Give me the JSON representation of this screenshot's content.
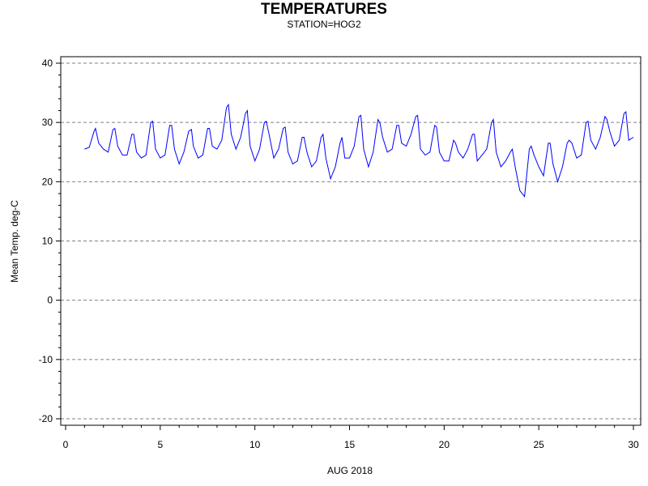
{
  "chart_data": {
    "type": "line",
    "title": "TEMPERATURES",
    "subtitle": "STATION=HOG2",
    "xlabel": "AUG 2018",
    "ylabel": "Mean Temp. deg-C",
    "xlim": [
      0,
      30
    ],
    "ylim": [
      -20,
      40
    ],
    "x_ticks": [
      0,
      5,
      10,
      15,
      20,
      25,
      30
    ],
    "y_ticks": [
      -20,
      -10,
      0,
      10,
      20,
      30,
      40
    ],
    "grid": "horizontal-dashed",
    "line_color": "#0000ff",
    "series": [
      {
        "x": [
          1.0,
          1.25,
          1.5,
          1.58,
          1.75,
          2.0,
          2.25,
          2.5,
          2.6,
          2.75,
          3.0,
          3.25,
          3.5,
          3.6,
          3.75,
          4.0,
          4.25,
          4.5,
          4.6,
          4.75,
          5.0,
          5.25,
          5.5,
          5.6,
          5.75,
          6.0,
          6.25,
          6.5,
          6.65,
          6.75,
          7.0,
          7.25,
          7.5,
          7.6,
          7.75,
          8.0,
          8.25,
          8.5,
          8.6,
          8.75,
          9.0,
          9.25,
          9.5,
          9.6,
          9.75,
          10.0,
          10.25,
          10.5,
          10.6,
          10.75,
          11.0,
          11.25,
          11.5,
          11.6,
          11.75,
          12.0,
          12.25,
          12.5,
          12.6,
          12.75,
          13.0,
          13.25,
          13.5,
          13.6,
          13.75,
          14.0,
          14.25,
          14.5,
          14.6,
          14.75,
          15.0,
          15.25,
          15.5,
          15.6,
          15.75,
          16.0,
          16.25,
          16.5,
          16.6,
          16.75,
          17.0,
          17.25,
          17.5,
          17.6,
          17.75,
          18.0,
          18.25,
          18.5,
          18.6,
          18.75,
          19.0,
          19.25,
          19.5,
          19.6,
          19.75,
          20.0,
          20.25,
          20.5,
          20.6,
          20.75,
          21.0,
          21.25,
          21.5,
          21.6,
          21.75,
          22.0,
          22.25,
          22.5,
          22.6,
          22.75,
          23.0,
          23.25,
          23.5,
          23.6,
          23.75,
          24.0,
          24.25,
          24.5,
          24.6,
          24.75,
          25.0,
          25.25,
          25.5,
          25.6,
          25.75,
          26.0,
          26.25,
          26.5,
          26.6,
          26.75,
          27.0,
          27.25,
          27.5,
          27.6,
          27.75,
          28.0,
          28.25,
          28.5,
          28.6,
          28.75,
          29.0,
          29.25,
          29.5,
          29.6,
          29.75,
          30.0
        ],
        "y": [
          25.5,
          25.8,
          28.5,
          29.0,
          26.5,
          25.5,
          25.0,
          28.8,
          29.0,
          26.0,
          24.5,
          24.5,
          28.0,
          28.0,
          25.0,
          24.0,
          24.5,
          30.0,
          30.2,
          25.5,
          24.0,
          24.5,
          29.5,
          29.5,
          25.5,
          23.0,
          25.0,
          28.5,
          28.8,
          26.0,
          24.0,
          24.5,
          29.0,
          29.0,
          26.0,
          25.5,
          27.0,
          32.5,
          33.0,
          28.0,
          25.5,
          27.5,
          31.5,
          32.0,
          26.0,
          23.5,
          25.5,
          30.0,
          30.2,
          28.0,
          24.0,
          25.5,
          29.0,
          29.2,
          25.0,
          23.0,
          23.5,
          27.5,
          27.5,
          25.0,
          22.5,
          23.5,
          27.5,
          28.0,
          24.0,
          20.5,
          22.5,
          26.5,
          27.5,
          24.0,
          24.0,
          26.0,
          31.0,
          31.2,
          25.5,
          22.5,
          25.0,
          30.5,
          30.0,
          27.5,
          25.0,
          25.5,
          29.5,
          29.5,
          26.5,
          26.0,
          28.0,
          31.0,
          31.2,
          25.5,
          24.5,
          25.0,
          29.5,
          29.2,
          25.0,
          23.5,
          23.5,
          27.0,
          26.5,
          25.0,
          24.0,
          25.5,
          28.0,
          28.0,
          23.5,
          24.5,
          25.5,
          30.0,
          30.5,
          25.0,
          22.5,
          23.5,
          25.0,
          25.5,
          22.5,
          18.5,
          17.5,
          25.5,
          26.0,
          24.5,
          22.5,
          21.0,
          26.5,
          26.5,
          23.0,
          20.0,
          22.5,
          26.5,
          27.0,
          26.5,
          24.0,
          24.5,
          30.0,
          30.2,
          27.0,
          25.5,
          27.5,
          31.0,
          30.5,
          28.5,
          26.0,
          27.0,
          31.5,
          31.8,
          27.0,
          27.5
        ]
      }
    ]
  }
}
